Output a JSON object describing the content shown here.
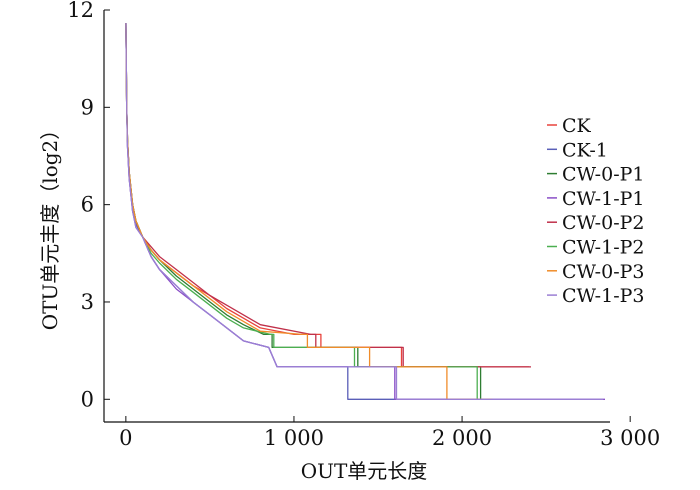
{
  "chart_data": {
    "type": "line",
    "title": "",
    "xlabel": "OUT单元长度",
    "ylabel": "OTU单元丰度（log2）",
    "xlim": [
      -130,
      2880
    ],
    "ylim": [
      -0.7,
      12
    ],
    "x_ticks": [
      0,
      1000,
      2000,
      3000
    ],
    "x_tick_labels": [
      "0",
      "1 000",
      "2 000",
      "3 000"
    ],
    "y_ticks": [
      0,
      3,
      6,
      9,
      12
    ],
    "y_tick_labels": [
      "0",
      "3",
      "6",
      "9",
      "12"
    ],
    "grid": false,
    "legend_position": "right",
    "series": [
      {
        "name": "CK",
        "color": "#e8433c",
        "points": [
          [
            0,
            11.6
          ],
          [
            5,
            9
          ],
          [
            10,
            8
          ],
          [
            20,
            7
          ],
          [
            40,
            6
          ],
          [
            60,
            5.5
          ],
          [
            100,
            5
          ],
          [
            150,
            4.6
          ],
          [
            200,
            4.3
          ],
          [
            300,
            3.9
          ],
          [
            400,
            3.5
          ],
          [
            500,
            3.2
          ],
          [
            600,
            2.8
          ],
          [
            700,
            2.5
          ],
          [
            800,
            2.2
          ],
          [
            1000,
            2
          ],
          [
            1160,
            2
          ],
          [
            1160,
            1.6
          ],
          [
            1640,
            1.6
          ],
          [
            1640,
            1
          ],
          [
            2400,
            1
          ]
        ]
      },
      {
        "name": "CK-1",
        "color": "#5a5fb8",
        "points": [
          [
            0,
            11.6
          ],
          [
            5,
            9
          ],
          [
            10,
            7.8
          ],
          [
            20,
            6.8
          ],
          [
            40,
            5.8
          ],
          [
            60,
            5.4
          ],
          [
            100,
            5
          ],
          [
            150,
            4.4
          ],
          [
            200,
            4
          ],
          [
            300,
            3.5
          ],
          [
            400,
            3
          ],
          [
            500,
            2.6
          ],
          [
            600,
            2.2
          ],
          [
            700,
            1.8
          ],
          [
            850,
            1.6
          ],
          [
            900,
            1
          ],
          [
            1320,
            1
          ],
          [
            1320,
            0
          ],
          [
            2170,
            0
          ]
        ]
      },
      {
        "name": "CW-0-P1",
        "color": "#2e7d32",
        "points": [
          [
            0,
            11.6
          ],
          [
            5,
            9
          ],
          [
            10,
            8
          ],
          [
            20,
            7
          ],
          [
            40,
            6
          ],
          [
            60,
            5.5
          ],
          [
            100,
            5
          ],
          [
            150,
            4.6
          ],
          [
            200,
            4.3
          ],
          [
            300,
            3.8
          ],
          [
            400,
            3.4
          ],
          [
            500,
            3
          ],
          [
            600,
            2.6
          ],
          [
            700,
            2.3
          ],
          [
            820,
            2
          ],
          [
            870,
            2
          ],
          [
            870,
            1.6
          ],
          [
            1380,
            1.6
          ],
          [
            1380,
            1
          ],
          [
            2110,
            1
          ],
          [
            2110,
            0
          ],
          [
            2180,
            0
          ]
        ]
      },
      {
        "name": "CW-1-P1",
        "color": "#8a4fc7",
        "points": [
          [
            0,
            11.6
          ],
          [
            5,
            9
          ],
          [
            10,
            7.8
          ],
          [
            20,
            6.8
          ],
          [
            40,
            5.8
          ],
          [
            60,
            5.3
          ],
          [
            100,
            5
          ],
          [
            150,
            4.4
          ],
          [
            200,
            4
          ],
          [
            300,
            3.4
          ],
          [
            400,
            3
          ],
          [
            500,
            2.6
          ],
          [
            600,
            2.2
          ],
          [
            700,
            1.8
          ],
          [
            850,
            1.6
          ],
          [
            900,
            1
          ],
          [
            1600,
            1
          ],
          [
            1600,
            0
          ],
          [
            2850,
            0
          ]
        ]
      },
      {
        "name": "CW-0-P2",
        "color": "#c0304a",
        "points": [
          [
            0,
            11.6
          ],
          [
            5,
            9
          ],
          [
            10,
            8
          ],
          [
            20,
            7
          ],
          [
            40,
            6
          ],
          [
            60,
            5.5
          ],
          [
            100,
            5
          ],
          [
            150,
            4.7
          ],
          [
            200,
            4.4
          ],
          [
            300,
            4
          ],
          [
            400,
            3.6
          ],
          [
            500,
            3.2
          ],
          [
            600,
            2.9
          ],
          [
            700,
            2.6
          ],
          [
            800,
            2.3
          ],
          [
            1100,
            2
          ],
          [
            1130,
            2
          ],
          [
            1130,
            1.6
          ],
          [
            1650,
            1.6
          ],
          [
            1650,
            1
          ],
          [
            2410,
            1
          ]
        ]
      },
      {
        "name": "CW-1-P2",
        "color": "#4caf50",
        "points": [
          [
            0,
            11.6
          ],
          [
            5,
            9
          ],
          [
            10,
            8
          ],
          [
            20,
            7
          ],
          [
            40,
            6
          ],
          [
            60,
            5.5
          ],
          [
            100,
            5
          ],
          [
            150,
            4.5
          ],
          [
            200,
            4.2
          ],
          [
            300,
            3.7
          ],
          [
            400,
            3.3
          ],
          [
            500,
            2.9
          ],
          [
            600,
            2.5
          ],
          [
            700,
            2.2
          ],
          [
            860,
            2
          ],
          [
            880,
            2
          ],
          [
            880,
            1.6
          ],
          [
            1360,
            1.6
          ],
          [
            1360,
            1
          ],
          [
            2090,
            1
          ],
          [
            2090,
            0
          ],
          [
            2130,
            0
          ]
        ]
      },
      {
        "name": "CW-0-P3",
        "color": "#f08c2a",
        "points": [
          [
            0,
            11.6
          ],
          [
            5,
            9
          ],
          [
            10,
            8
          ],
          [
            20,
            7
          ],
          [
            40,
            6
          ],
          [
            60,
            5.5
          ],
          [
            100,
            5
          ],
          [
            150,
            4.6
          ],
          [
            200,
            4.3
          ],
          [
            300,
            3.9
          ],
          [
            400,
            3.5
          ],
          [
            500,
            3.1
          ],
          [
            600,
            2.7
          ],
          [
            700,
            2.4
          ],
          [
            800,
            2.1
          ],
          [
            1050,
            2
          ],
          [
            1080,
            2
          ],
          [
            1080,
            1.6
          ],
          [
            1450,
            1.6
          ],
          [
            1450,
            1
          ],
          [
            1910,
            1
          ],
          [
            1910,
            0
          ],
          [
            2180,
            0
          ]
        ]
      },
      {
        "name": "CW-1-P3",
        "color": "#9b7fd4",
        "points": [
          [
            0,
            11.6
          ],
          [
            5,
            9
          ],
          [
            10,
            7.8
          ],
          [
            20,
            6.8
          ],
          [
            40,
            5.8
          ],
          [
            60,
            5.3
          ],
          [
            100,
            5
          ],
          [
            150,
            4.4
          ],
          [
            200,
            4
          ],
          [
            300,
            3.5
          ],
          [
            400,
            3
          ],
          [
            500,
            2.6
          ],
          [
            600,
            2.2
          ],
          [
            700,
            1.8
          ],
          [
            850,
            1.6
          ],
          [
            900,
            1
          ],
          [
            1610,
            1
          ],
          [
            1610,
            0
          ],
          [
            2840,
            0
          ]
        ]
      }
    ]
  }
}
